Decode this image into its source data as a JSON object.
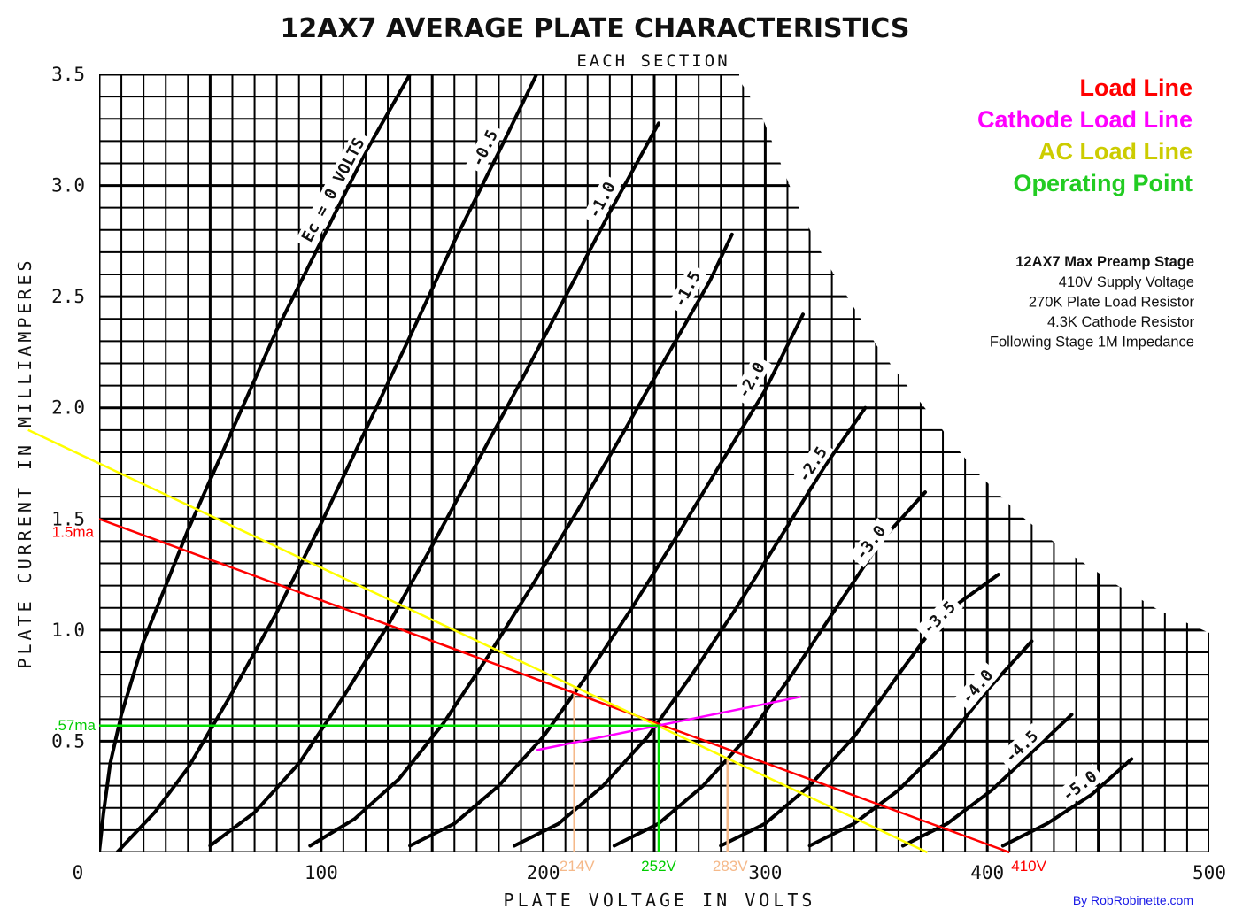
{
  "chart_data": {
    "type": "line",
    "title": "12AX7 AVERAGE PLATE CHARACTERISTICS",
    "subtitle": "EACH SECTION",
    "xlabel": "PLATE VOLTAGE IN VOLTS",
    "ylabel": "PLATE CURRENT IN MILLIAMPERES",
    "xlim": [
      0,
      500
    ],
    "ylim": [
      0,
      3.5
    ],
    "grid": true,
    "x_ticks": [
      {
        "value": 0,
        "label": "0"
      },
      {
        "value": 100,
        "label": "100"
      },
      {
        "value": 200,
        "label": "200"
      },
      {
        "value": 300,
        "label": "300"
      },
      {
        "value": 400,
        "label": "400"
      },
      {
        "value": 500,
        "label": "500"
      }
    ],
    "y_ticks": [
      {
        "value": 0.5,
        "label": "0.5"
      },
      {
        "value": 1.0,
        "label": "1.0"
      },
      {
        "value": 1.5,
        "label": "1.5"
      },
      {
        "value": 2.0,
        "label": "2.0"
      },
      {
        "value": 2.5,
        "label": "2.5"
      },
      {
        "value": 3.0,
        "label": "3.0"
      },
      {
        "value": 3.5,
        "label": "3.5"
      }
    ],
    "grid_curves_label_prefix": "Ec = ",
    "series": [
      {
        "name": "Ec = 0 VOLTS",
        "label": "Ec = 0 VOLTS",
        "grid_voltage": 0,
        "points": [
          [
            0,
            0
          ],
          [
            2,
            0.18
          ],
          [
            5,
            0.4
          ],
          [
            10,
            0.62
          ],
          [
            20,
            0.95
          ],
          [
            40,
            1.45
          ],
          [
            60,
            1.9
          ],
          [
            80,
            2.35
          ],
          [
            100,
            2.75
          ],
          [
            120,
            3.15
          ],
          [
            140,
            3.5
          ]
        ]
      },
      {
        "name": "-0.5",
        "label": "-0.5",
        "grid_voltage": -0.5,
        "points": [
          [
            8,
            0
          ],
          [
            25,
            0.18
          ],
          [
            40,
            0.38
          ],
          [
            60,
            0.72
          ],
          [
            80,
            1.08
          ],
          [
            100,
            1.48
          ],
          [
            120,
            1.9
          ],
          [
            140,
            2.32
          ],
          [
            160,
            2.75
          ],
          [
            180,
            3.15
          ],
          [
            197,
            3.5
          ]
        ]
      },
      {
        "name": "-1.0",
        "label": "-1.0",
        "grid_voltage": -1.0,
        "points": [
          [
            50,
            0.03
          ],
          [
            70,
            0.18
          ],
          [
            90,
            0.4
          ],
          [
            110,
            0.7
          ],
          [
            130,
            1.02
          ],
          [
            150,
            1.38
          ],
          [
            170,
            1.75
          ],
          [
            190,
            2.12
          ],
          [
            210,
            2.5
          ],
          [
            230,
            2.88
          ],
          [
            252,
            3.28
          ]
        ]
      },
      {
        "name": "-1.5",
        "label": "-1.5",
        "grid_voltage": -1.5,
        "points": [
          [
            95,
            0.03
          ],
          [
            115,
            0.15
          ],
          [
            135,
            0.33
          ],
          [
            155,
            0.58
          ],
          [
            175,
            0.88
          ],
          [
            195,
            1.2
          ],
          [
            215,
            1.53
          ],
          [
            235,
            1.87
          ],
          [
            255,
            2.22
          ],
          [
            275,
            2.57
          ],
          [
            285,
            2.78
          ]
        ]
      },
      {
        "name": "-2.0",
        "label": "-2.0",
        "grid_voltage": -2.0,
        "points": [
          [
            140,
            0.03
          ],
          [
            160,
            0.13
          ],
          [
            180,
            0.3
          ],
          [
            200,
            0.52
          ],
          [
            220,
            0.8
          ],
          [
            240,
            1.1
          ],
          [
            260,
            1.42
          ],
          [
            280,
            1.75
          ],
          [
            300,
            2.08
          ],
          [
            317,
            2.42
          ]
        ]
      },
      {
        "name": "-2.5",
        "label": "-2.5",
        "grid_voltage": -2.5,
        "points": [
          [
            187,
            0.03
          ],
          [
            207,
            0.13
          ],
          [
            227,
            0.3
          ],
          [
            247,
            0.52
          ],
          [
            267,
            0.8
          ],
          [
            287,
            1.1
          ],
          [
            307,
            1.42
          ],
          [
            327,
            1.74
          ],
          [
            345,
            2.0
          ]
        ]
      },
      {
        "name": "-3.0",
        "label": "-3.0",
        "grid_voltage": -3.0,
        "points": [
          [
            232,
            0.03
          ],
          [
            252,
            0.13
          ],
          [
            272,
            0.3
          ],
          [
            292,
            0.52
          ],
          [
            312,
            0.8
          ],
          [
            332,
            1.1
          ],
          [
            352,
            1.4
          ],
          [
            372,
            1.62
          ]
        ]
      },
      {
        "name": "-3.5",
        "label": "-3.5",
        "grid_voltage": -3.5,
        "points": [
          [
            280,
            0.03
          ],
          [
            300,
            0.13
          ],
          [
            320,
            0.3
          ],
          [
            340,
            0.52
          ],
          [
            360,
            0.8
          ],
          [
            380,
            1.07
          ],
          [
            405,
            1.25
          ]
        ]
      },
      {
        "name": "-4.0",
        "label": "-4.0",
        "grid_voltage": -4.0,
        "points": [
          [
            320,
            0.03
          ],
          [
            340,
            0.13
          ],
          [
            360,
            0.28
          ],
          [
            380,
            0.48
          ],
          [
            400,
            0.73
          ],
          [
            420,
            0.95
          ]
        ]
      },
      {
        "name": "-4.5",
        "label": "-4.5",
        "grid_voltage": -4.5,
        "points": [
          [
            362,
            0.03
          ],
          [
            382,
            0.13
          ],
          [
            402,
            0.28
          ],
          [
            420,
            0.45
          ],
          [
            438,
            0.62
          ]
        ]
      },
      {
        "name": "-5.0",
        "label": "-5.0",
        "grid_voltage": -5.0,
        "points": [
          [
            407,
            0.03
          ],
          [
            427,
            0.13
          ],
          [
            447,
            0.26
          ],
          [
            465,
            0.42
          ]
        ]
      }
    ],
    "overlay_lines": [
      {
        "name": "Load Line",
        "color": "#ff0000",
        "points": [
          [
            0,
            1.5
          ],
          [
            410,
            0
          ]
        ]
      },
      {
        "name": "AC Load Line",
        "color": "#ffff00",
        "points": [
          [
            -32,
            1.9
          ],
          [
            373,
            0
          ]
        ]
      },
      {
        "name": "Cathode Load Line",
        "color": "#ff00ff",
        "points": [
          [
            197,
            0.46
          ],
          [
            316,
            0.7
          ]
        ]
      },
      {
        "name": "Operating Point",
        "color": "#00dd00",
        "points": [
          [
            0,
            0.57
          ],
          [
            252,
            0.57
          ],
          [
            252,
            0
          ]
        ]
      }
    ],
    "swing_lines": [
      {
        "voltage": 214,
        "color": "#f5b98a",
        "label": "214V"
      },
      {
        "voltage": 283,
        "color": "#f5b98a",
        "label": "283V"
      }
    ],
    "operating_point": {
      "voltage": 252,
      "current": 0.57,
      "voltage_label": "252V",
      "current_label": ".57ma",
      "color": "#00cc00"
    },
    "annotations": [
      {
        "text": "1.5ma",
        "color": "#ff0000",
        "value": 1.5,
        "axis": "y"
      },
      {
        "text": "410V",
        "color": "#ff0000",
        "value": 410,
        "axis": "x"
      }
    ],
    "legend": {
      "position": "top-right",
      "entries": [
        {
          "label": "Load Line",
          "color": "#ff0000"
        },
        {
          "label": "Cathode Load Line",
          "color": "#ff00ff"
        },
        {
          "label": "AC Load Line",
          "color": "#cccc00"
        },
        {
          "label": "Operating Point",
          "color": "#22cc22"
        }
      ]
    },
    "info_box": {
      "title": "12AX7 Max Preamp Stage",
      "lines": [
        "410V Supply Voltage",
        "270K Plate Load Resistor",
        "4.3K Cathode Resistor",
        "Following Stage 1M Impedance"
      ]
    },
    "credit": "By RobRobinette.com"
  }
}
